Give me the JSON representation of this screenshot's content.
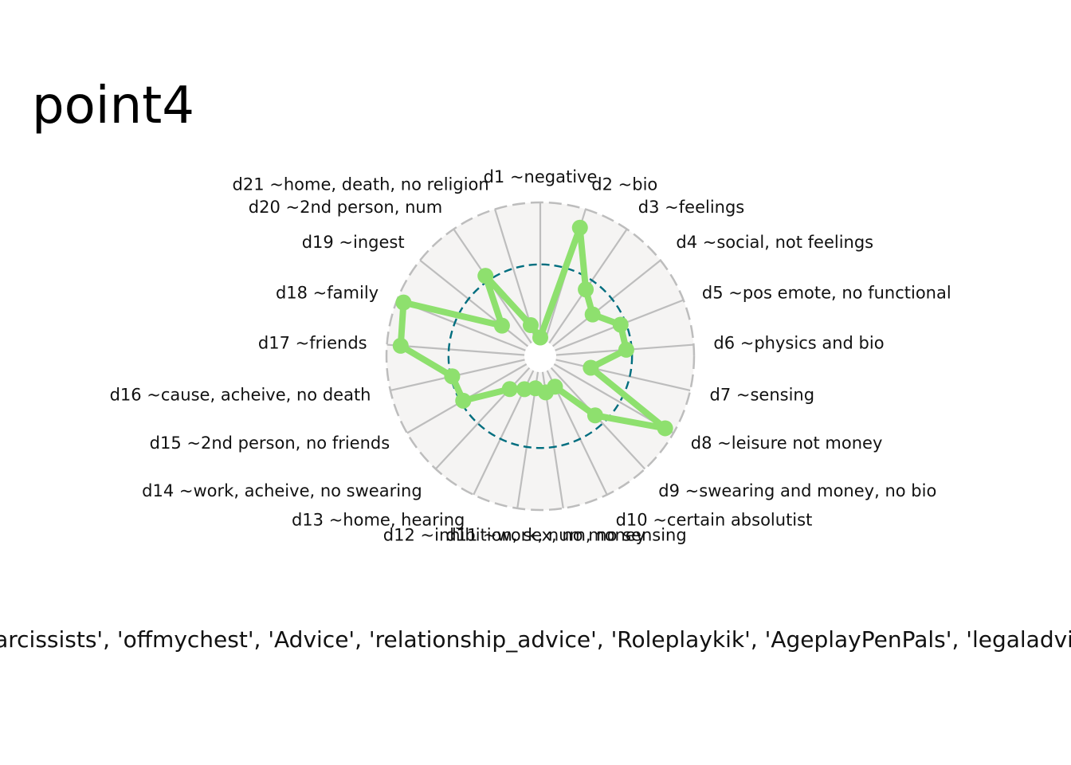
{
  "chart_data": {
    "type": "radar",
    "title": "point4",
    "caption": "['narcissists', 'offmychest', 'Advice', 'relationship_advice', 'Roleplaykik', 'AgeplayPenPals', 'legaladvice'",
    "axes": [
      "d1 ~negative",
      "d2 ~bio",
      "d3 ~feelings",
      "d4 ~social, not feelings",
      "d5 ~pos emote, no functional",
      "d6 ~physics and bio",
      "d7 ~sensing",
      "d8 ~leisure not money",
      "d9 ~swearing and money, no bio",
      "d10 ~certain absolutist",
      "d11 ~work, num, no sensing",
      "d12 ~inhibition, sex, no money",
      "d13 ~home, hearing",
      "d14 ~work, acheive, no swearing",
      "d15 ~2nd person, no friends",
      "d16 ~cause, acheive, no death",
      "d17 ~friends",
      "d18 ~family",
      "d19 ~ingest",
      "d20 ~2nd person, num",
      "d21 ~home, death, no religion"
    ],
    "series": [
      {
        "values": [
          0.02,
          0.86,
          0.47,
          0.37,
          0.51,
          0.51,
          0.26,
          0.93,
          0.47,
          0.13,
          0.15,
          0.12,
          0.15,
          0.21,
          0.53,
          0.54,
          0.9,
          0.95,
          0.24,
          0.59,
          0.12
        ],
        "color": "#8ee06e"
      }
    ],
    "reference_circle": 0.55,
    "reference_color": "#006e7f",
    "range": [
      0,
      1
    ],
    "grid": true,
    "background": "#f5f4f3",
    "grid_color": "#bdbdbd"
  }
}
